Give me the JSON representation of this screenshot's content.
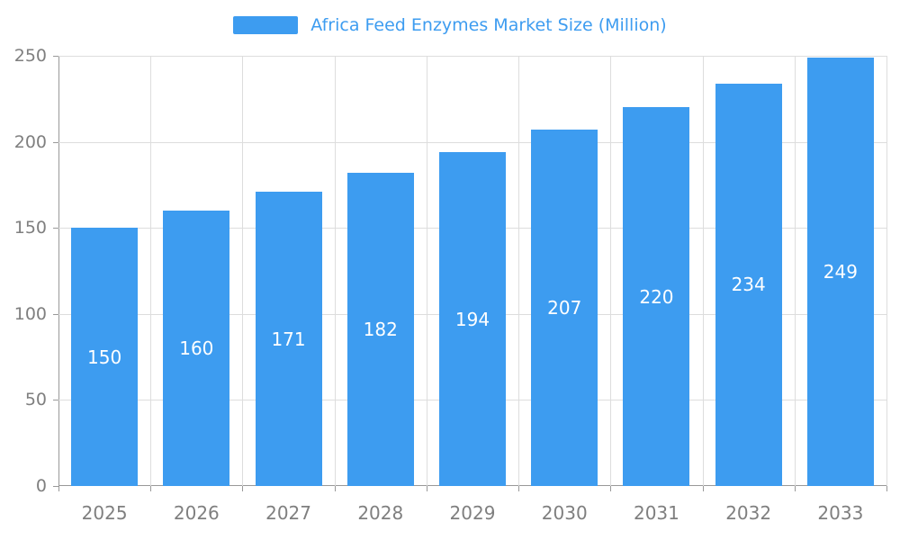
{
  "chart_data": {
    "type": "bar",
    "title": "Africa Feed Enzymes Market Size (Million)",
    "categories": [
      "2025",
      "2026",
      "2027",
      "2028",
      "2029",
      "2030",
      "2031",
      "2032",
      "2033"
    ],
    "values": [
      150,
      160,
      171,
      182,
      194,
      207,
      220,
      234,
      249
    ],
    "xlabel": "",
    "ylabel": "",
    "ylim": [
      0,
      250
    ],
    "yticks": [
      0,
      50,
      100,
      150,
      200,
      250
    ],
    "grid": true,
    "legend_position": "top",
    "bar_color": "#3D9CF0",
    "title_color": "#3D9CF0",
    "value_label_color": "#FFFFFF",
    "axis_label_color": "#7F7F7F",
    "grid_color": "#DDDDDD",
    "axis_line_color": "#999999"
  }
}
